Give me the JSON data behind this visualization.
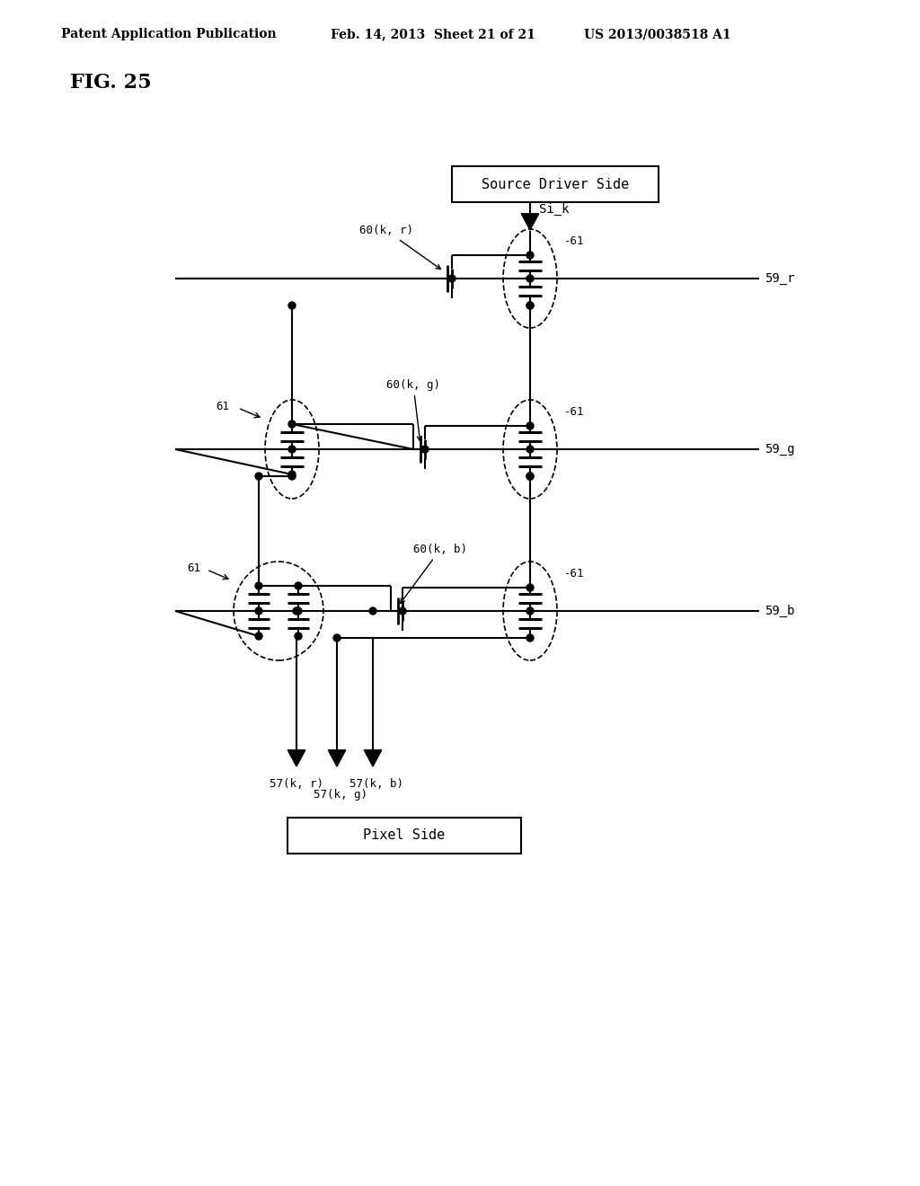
{
  "title": "FIG. 25",
  "header_left": "Patent Application Publication",
  "header_mid": "Feb. 14, 2013  Sheet 21 of 21",
  "header_right": "US 2013/0038518 A1",
  "source_driver_label": "Source Driver Side",
  "pixel_label": "Pixel Side",
  "bg_color": "#ffffff",
  "line_color": "#000000"
}
